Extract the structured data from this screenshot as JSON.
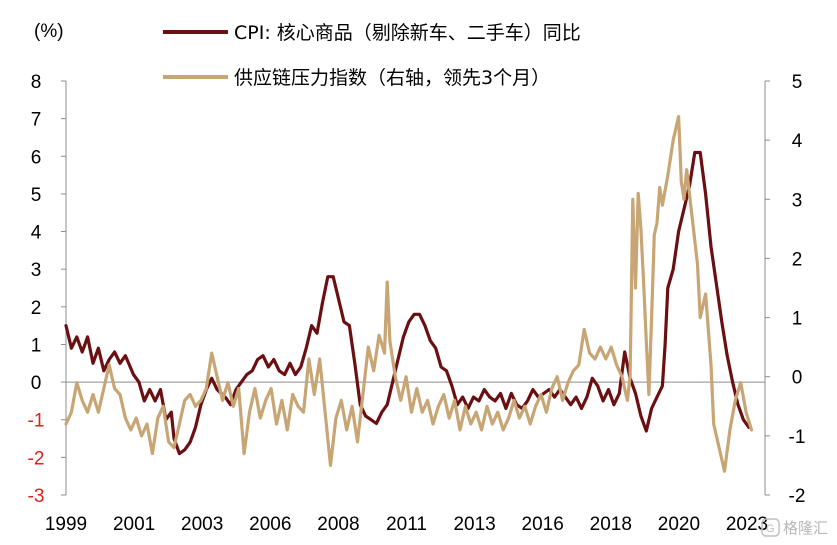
{
  "chart_data": {
    "type": "line",
    "unit_label": "(%)",
    "watermark": "格隆汇",
    "x_ticks": [
      "1999",
      "2001",
      "2003",
      "2006",
      "2008",
      "2011",
      "2013",
      "2016",
      "2018",
      "2020",
      "2023"
    ],
    "y_left": {
      "min": -3,
      "max": 8,
      "ticks": [
        8,
        7,
        6,
        5,
        4,
        3,
        2,
        1,
        0,
        -1,
        -2,
        -3
      ]
    },
    "y_right": {
      "min": -2,
      "max": 5,
      "ticks": [
        5,
        4,
        3,
        2,
        1,
        0,
        -1,
        -2
      ]
    },
    "x_range": [
      1999.0,
      2024.9
    ],
    "zero_line": true,
    "series": [
      {
        "name": "CPI: 核心商品（剔除新车、二手车）同比",
        "axis": "left",
        "color": "#6b0f12",
        "points": [
          [
            1999.0,
            1.5
          ],
          [
            1999.2,
            0.9
          ],
          [
            1999.4,
            1.2
          ],
          [
            1999.6,
            0.8
          ],
          [
            1999.8,
            1.2
          ],
          [
            2000.0,
            0.5
          ],
          [
            2000.2,
            0.9
          ],
          [
            2000.4,
            0.3
          ],
          [
            2000.6,
            0.6
          ],
          [
            2000.8,
            0.8
          ],
          [
            2001.0,
            0.5
          ],
          [
            2001.2,
            0.7
          ],
          [
            2001.5,
            0.2
          ],
          [
            2001.7,
            0.0
          ],
          [
            2001.9,
            -0.5
          ],
          [
            2002.1,
            -0.2
          ],
          [
            2002.3,
            -0.5
          ],
          [
            2002.5,
            -0.2
          ],
          [
            2002.7,
            -1.0
          ],
          [
            2002.9,
            -0.8
          ],
          [
            2003.0,
            -1.5
          ],
          [
            2003.2,
            -1.9
          ],
          [
            2003.4,
            -1.8
          ],
          [
            2003.6,
            -1.6
          ],
          [
            2003.8,
            -1.2
          ],
          [
            2004.0,
            -0.6
          ],
          [
            2004.2,
            -0.2
          ],
          [
            2004.4,
            0.1
          ],
          [
            2004.6,
            -0.2
          ],
          [
            2004.9,
            -0.4
          ],
          [
            2005.1,
            -0.6
          ],
          [
            2005.3,
            -0.2
          ],
          [
            2005.5,
            0.0
          ],
          [
            2005.7,
            0.2
          ],
          [
            2005.9,
            0.3
          ],
          [
            2006.1,
            0.6
          ],
          [
            2006.3,
            0.7
          ],
          [
            2006.5,
            0.4
          ],
          [
            2006.7,
            0.6
          ],
          [
            2006.9,
            0.3
          ],
          [
            2007.1,
            0.2
          ],
          [
            2007.3,
            0.5
          ],
          [
            2007.5,
            0.2
          ],
          [
            2007.7,
            0.4
          ],
          [
            2007.9,
            0.9
          ],
          [
            2008.1,
            1.5
          ],
          [
            2008.3,
            1.3
          ],
          [
            2008.5,
            2.1
          ],
          [
            2008.7,
            2.8
          ],
          [
            2008.9,
            2.8
          ],
          [
            2009.1,
            2.2
          ],
          [
            2009.3,
            1.6
          ],
          [
            2009.5,
            1.5
          ],
          [
            2009.7,
            0.5
          ],
          [
            2009.9,
            -0.6
          ],
          [
            2010.1,
            -0.9
          ],
          [
            2010.3,
            -1.0
          ],
          [
            2010.5,
            -1.1
          ],
          [
            2010.7,
            -0.8
          ],
          [
            2010.9,
            -0.6
          ],
          [
            2011.1,
            0.0
          ],
          [
            2011.3,
            0.6
          ],
          [
            2011.5,
            1.2
          ],
          [
            2011.7,
            1.6
          ],
          [
            2011.9,
            1.8
          ],
          [
            2012.1,
            1.8
          ],
          [
            2012.3,
            1.5
          ],
          [
            2012.5,
            1.1
          ],
          [
            2012.7,
            0.9
          ],
          [
            2012.9,
            0.4
          ],
          [
            2013.1,
            0.3
          ],
          [
            2013.3,
            -0.1
          ],
          [
            2013.5,
            -0.6
          ],
          [
            2013.7,
            -0.4
          ],
          [
            2013.9,
            -0.7
          ],
          [
            2014.1,
            -0.4
          ],
          [
            2014.3,
            -0.5
          ],
          [
            2014.5,
            -0.2
          ],
          [
            2014.7,
            -0.4
          ],
          [
            2014.9,
            -0.5
          ],
          [
            2015.1,
            -0.3
          ],
          [
            2015.3,
            -0.7
          ],
          [
            2015.5,
            -0.3
          ],
          [
            2015.7,
            -0.6
          ],
          [
            2015.9,
            -0.7
          ],
          [
            2016.1,
            -0.5
          ],
          [
            2016.3,
            -0.2
          ],
          [
            2016.5,
            -0.4
          ],
          [
            2016.7,
            -0.3
          ],
          [
            2016.9,
            -0.2
          ],
          [
            2017.1,
            -0.4
          ],
          [
            2017.3,
            -0.2
          ],
          [
            2017.5,
            -0.4
          ],
          [
            2017.7,
            -0.6
          ],
          [
            2017.9,
            -0.4
          ],
          [
            2018.1,
            -0.7
          ],
          [
            2018.3,
            -0.4
          ],
          [
            2018.5,
            0.1
          ],
          [
            2018.7,
            -0.1
          ],
          [
            2018.9,
            -0.5
          ],
          [
            2019.1,
            -0.2
          ],
          [
            2019.3,
            -0.6
          ],
          [
            2019.5,
            -0.3
          ],
          [
            2019.7,
            0.8
          ],
          [
            2019.9,
            0.1
          ],
          [
            2020.1,
            -0.3
          ],
          [
            2020.3,
            -0.9
          ],
          [
            2020.5,
            -1.3
          ],
          [
            2020.7,
            -0.7
          ],
          [
            2020.9,
            -0.4
          ],
          [
            2021.1,
            -0.1
          ],
          [
            2021.2,
            1.0
          ],
          [
            2021.3,
            2.5
          ],
          [
            2021.5,
            3.0
          ],
          [
            2021.7,
            4.0
          ],
          [
            2021.9,
            4.6
          ],
          [
            2022.1,
            5.2
          ],
          [
            2022.3,
            6.1
          ],
          [
            2022.5,
            6.1
          ],
          [
            2022.7,
            5.0
          ],
          [
            2022.9,
            3.6
          ],
          [
            2023.1,
            2.6
          ],
          [
            2023.3,
            1.6
          ],
          [
            2023.5,
            0.7
          ],
          [
            2023.7,
            0.0
          ],
          [
            2023.9,
            -0.6
          ],
          [
            2024.1,
            -1.0
          ],
          [
            2024.3,
            -1.2
          ]
        ]
      },
      {
        "name": "供应链压力指数（右轴，领先3个月）",
        "axis": "right",
        "color": "#c8a574",
        "points": [
          [
            1999.0,
            -0.8
          ],
          [
            1999.2,
            -0.6
          ],
          [
            1999.4,
            -0.1
          ],
          [
            1999.6,
            -0.4
          ],
          [
            1999.8,
            -0.6
          ],
          [
            2000.0,
            -0.3
          ],
          [
            2000.2,
            -0.6
          ],
          [
            2000.4,
            -0.2
          ],
          [
            2000.6,
            0.2
          ],
          [
            2000.8,
            -0.2
          ],
          [
            2001.0,
            -0.3
          ],
          [
            2001.2,
            -0.7
          ],
          [
            2001.4,
            -0.9
          ],
          [
            2001.6,
            -0.7
          ],
          [
            2001.8,
            -1.0
          ],
          [
            2002.0,
            -0.8
          ],
          [
            2002.2,
            -1.3
          ],
          [
            2002.4,
            -0.7
          ],
          [
            2002.6,
            -0.5
          ],
          [
            2002.8,
            -1.1
          ],
          [
            2003.0,
            -1.2
          ],
          [
            2003.2,
            -0.8
          ],
          [
            2003.4,
            -0.4
          ],
          [
            2003.6,
            -0.3
          ],
          [
            2003.8,
            -0.5
          ],
          [
            2004.0,
            -0.4
          ],
          [
            2004.2,
            -0.2
          ],
          [
            2004.4,
            0.4
          ],
          [
            2004.6,
            0.0
          ],
          [
            2004.8,
            -0.4
          ],
          [
            2005.0,
            -0.1
          ],
          [
            2005.2,
            -0.5
          ],
          [
            2005.4,
            -0.2
          ],
          [
            2005.6,
            -1.3
          ],
          [
            2005.8,
            -0.6
          ],
          [
            2006.0,
            -0.2
          ],
          [
            2006.2,
            -0.7
          ],
          [
            2006.4,
            -0.4
          ],
          [
            2006.6,
            -0.2
          ],
          [
            2006.8,
            -0.8
          ],
          [
            2007.0,
            -0.4
          ],
          [
            2007.2,
            -0.9
          ],
          [
            2007.4,
            -0.3
          ],
          [
            2007.6,
            -0.5
          ],
          [
            2007.8,
            -0.6
          ],
          [
            2008.0,
            0.3
          ],
          [
            2008.2,
            -0.3
          ],
          [
            2008.4,
            0.3
          ],
          [
            2008.6,
            -0.6
          ],
          [
            2008.8,
            -1.5
          ],
          [
            2009.0,
            -0.7
          ],
          [
            2009.2,
            -0.4
          ],
          [
            2009.4,
            -0.9
          ],
          [
            2009.6,
            -0.5
          ],
          [
            2009.8,
            -1.1
          ],
          [
            2010.0,
            -0.3
          ],
          [
            2010.2,
            0.5
          ],
          [
            2010.4,
            0.1
          ],
          [
            2010.6,
            0.7
          ],
          [
            2010.8,
            0.4
          ],
          [
            2010.9,
            1.6
          ],
          [
            2011.0,
            0.6
          ],
          [
            2011.2,
            0.0
          ],
          [
            2011.4,
            -0.4
          ],
          [
            2011.6,
            0.0
          ],
          [
            2011.8,
            -0.6
          ],
          [
            2012.0,
            -0.2
          ],
          [
            2012.2,
            -0.6
          ],
          [
            2012.4,
            -0.4
          ],
          [
            2012.6,
            -0.8
          ],
          [
            2012.8,
            -0.5
          ],
          [
            2013.0,
            -0.3
          ],
          [
            2013.2,
            -0.7
          ],
          [
            2013.4,
            -0.4
          ],
          [
            2013.6,
            -0.9
          ],
          [
            2013.8,
            -0.5
          ],
          [
            2014.0,
            -0.8
          ],
          [
            2014.2,
            -0.6
          ],
          [
            2014.4,
            -0.9
          ],
          [
            2014.6,
            -0.5
          ],
          [
            2014.8,
            -0.8
          ],
          [
            2015.0,
            -0.6
          ],
          [
            2015.2,
            -0.9
          ],
          [
            2015.4,
            -0.7
          ],
          [
            2015.6,
            -0.4
          ],
          [
            2015.8,
            -0.7
          ],
          [
            2016.0,
            -0.5
          ],
          [
            2016.2,
            -0.8
          ],
          [
            2016.4,
            -0.5
          ],
          [
            2016.6,
            -0.3
          ],
          [
            2016.8,
            -0.6
          ],
          [
            2017.0,
            -0.2
          ],
          [
            2017.2,
            0.0
          ],
          [
            2017.4,
            -0.4
          ],
          [
            2017.6,
            -0.1
          ],
          [
            2017.8,
            0.1
          ],
          [
            2018.0,
            0.2
          ],
          [
            2018.2,
            0.8
          ],
          [
            2018.4,
            0.4
          ],
          [
            2018.6,
            0.3
          ],
          [
            2018.8,
            0.5
          ],
          [
            2019.0,
            0.3
          ],
          [
            2019.2,
            0.5
          ],
          [
            2019.4,
            0.2
          ],
          [
            2019.6,
            0.0
          ],
          [
            2019.8,
            -0.4
          ],
          [
            2019.9,
            0.0
          ],
          [
            2020.0,
            3.0
          ],
          [
            2020.1,
            1.5
          ],
          [
            2020.2,
            3.1
          ],
          [
            2020.3,
            2.5
          ],
          [
            2020.4,
            1.6
          ],
          [
            2020.5,
            0.6
          ],
          [
            2020.6,
            -0.3
          ],
          [
            2020.7,
            1.0
          ],
          [
            2020.8,
            2.4
          ],
          [
            2020.9,
            2.6
          ],
          [
            2021.0,
            3.2
          ],
          [
            2021.1,
            2.9
          ],
          [
            2021.3,
            3.4
          ],
          [
            2021.5,
            4.0
          ],
          [
            2021.7,
            4.4
          ],
          [
            2021.8,
            3.3
          ],
          [
            2021.9,
            3.0
          ],
          [
            2022.0,
            3.5
          ],
          [
            2022.2,
            2.7
          ],
          [
            2022.4,
            1.9
          ],
          [
            2022.5,
            1.0
          ],
          [
            2022.7,
            1.4
          ],
          [
            2022.9,
            0.2
          ],
          [
            2023.0,
            -0.8
          ],
          [
            2023.2,
            -1.2
          ],
          [
            2023.4,
            -1.6
          ],
          [
            2023.6,
            -0.9
          ],
          [
            2023.8,
            -0.4
          ],
          [
            2024.0,
            -0.1
          ],
          [
            2024.2,
            -0.6
          ],
          [
            2024.4,
            -0.9
          ]
        ]
      }
    ]
  }
}
